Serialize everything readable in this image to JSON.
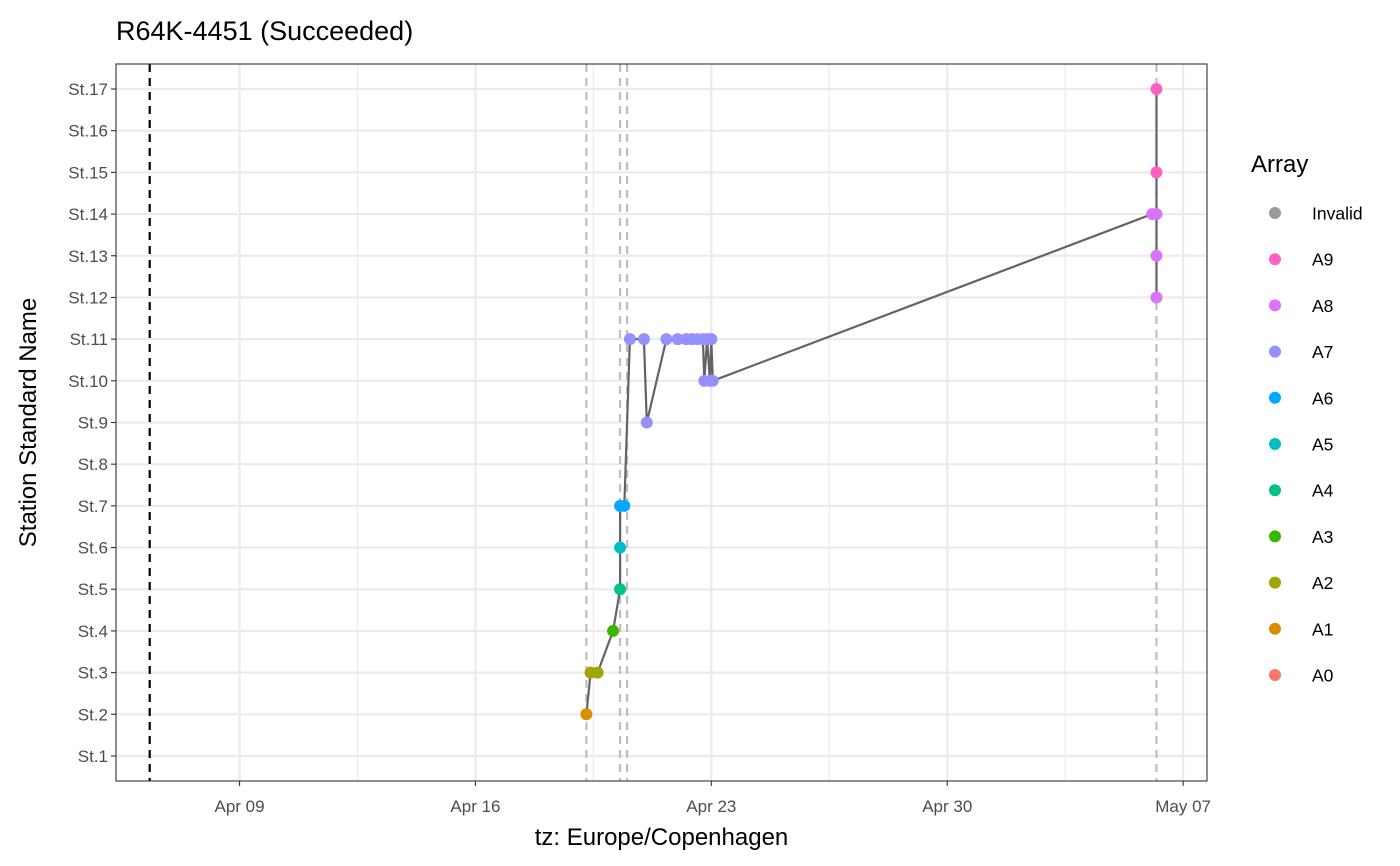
{
  "chart_data": {
    "type": "line",
    "title": "R64K-4451 (Succeeded)",
    "xlabel": "tz: Europe/Copenhagen",
    "ylabel": "Station Standard Name",
    "x_type": "date",
    "xlim": [
      "2024-04-05T08:00",
      "2024-05-07T17:00"
    ],
    "x_ticks": [
      {
        "date": "2024-04-09",
        "label": "Apr 09"
      },
      {
        "date": "2024-04-16",
        "label": "Apr 16"
      },
      {
        "date": "2024-04-23",
        "label": "Apr 23"
      },
      {
        "date": "2024-04-30",
        "label": "Apr 30"
      },
      {
        "date": "2024-05-07",
        "label": "May 07"
      }
    ],
    "x_minor_gridlines": [
      "2024-04-12T12:00",
      "2024-04-19T12:00",
      "2024-04-26T12:00",
      "2024-05-03T12:00"
    ],
    "y_categories": [
      "St.1",
      "St.2",
      "St.3",
      "St.4",
      "St.5",
      "St.6",
      "St.7",
      "St.8",
      "St.9",
      "St.10",
      "St.11",
      "St.12",
      "St.13",
      "St.14",
      "St.15",
      "St.16",
      "St.17"
    ],
    "grid": true,
    "release_line": {
      "date": "2024-04-06T08:00",
      "style": "dashed",
      "color": "#000000"
    },
    "vertical_reference_lines": {
      "dates": [
        "2024-04-19T07:00",
        "2024-04-20T07:00",
        "2024-04-20T12:00",
        "2024-05-06T05:00"
      ],
      "style": "dashed",
      "color": "#bebebe"
    },
    "path_color": "#636363",
    "points": [
      {
        "x": "2024-04-19T07:00",
        "y": "St.2",
        "array": "A1"
      },
      {
        "x": "2024-04-19T10:00",
        "y": "St.3",
        "array": "A2"
      },
      {
        "x": "2024-04-19T15:00",
        "y": "St.3",
        "array": "A2"
      },
      {
        "x": "2024-04-20T02:00",
        "y": "St.4",
        "array": "A3"
      },
      {
        "x": "2024-04-20T07:00",
        "y": "St.5",
        "array": "A4"
      },
      {
        "x": "2024-04-20T07:00",
        "y": "St.6",
        "array": "A5"
      },
      {
        "x": "2024-04-20T07:00",
        "y": "St.7",
        "array": "A6"
      },
      {
        "x": "2024-04-20T10:00",
        "y": "St.7",
        "array": "A6"
      },
      {
        "x": "2024-04-20T14:00",
        "y": "St.11",
        "array": "A7"
      },
      {
        "x": "2024-04-21T00:00",
        "y": "St.11",
        "array": "A7"
      },
      {
        "x": "2024-04-21T02:00",
        "y": "St.9",
        "array": "A7"
      },
      {
        "x": "2024-04-21T16:00",
        "y": "St.11",
        "array": "A7"
      },
      {
        "x": "2024-04-22T00:00",
        "y": "St.11",
        "array": "A7"
      },
      {
        "x": "2024-04-22T06:00",
        "y": "St.11",
        "array": "A7"
      },
      {
        "x": "2024-04-22T10:00",
        "y": "St.11",
        "array": "A7"
      },
      {
        "x": "2024-04-22T14:00",
        "y": "St.11",
        "array": "A7"
      },
      {
        "x": "2024-04-22T18:00",
        "y": "St.11",
        "array": "A7"
      },
      {
        "x": "2024-04-22T19:00",
        "y": "St.10",
        "array": "A7"
      },
      {
        "x": "2024-04-22T21:00",
        "y": "St.11",
        "array": "A7"
      },
      {
        "x": "2024-04-22T23:00",
        "y": "St.10",
        "array": "A7"
      },
      {
        "x": "2024-04-23T00:00",
        "y": "St.11",
        "array": "A7"
      },
      {
        "x": "2024-04-23T01:00",
        "y": "St.10",
        "array": "A7"
      },
      {
        "x": "2024-05-06T02:00",
        "y": "St.14",
        "array": "A8"
      },
      {
        "x": "2024-05-06T05:00",
        "y": "St.14",
        "array": "A8"
      },
      {
        "x": "2024-05-06T05:00",
        "y": "St.15",
        "array": "A9"
      },
      {
        "x": "2024-05-06T05:00",
        "y": "St.13",
        "array": "A8"
      },
      {
        "x": "2024-05-06T05:00",
        "y": "St.12",
        "array": "A8"
      },
      {
        "x": "2024-05-06T05:00",
        "y": "St.17",
        "array": "A9"
      }
    ],
    "legend": {
      "title": "Array",
      "placement": "right",
      "entries": [
        {
          "label": "Invalid",
          "color": "#999999"
        },
        {
          "label": "A9",
          "color": "#FF61C3"
        },
        {
          "label": "A8",
          "color": "#DB72FB"
        },
        {
          "label": "A7",
          "color": "#9590FF"
        },
        {
          "label": "A6",
          "color": "#00A9FF"
        },
        {
          "label": "A5",
          "color": "#00BFC4"
        },
        {
          "label": "A4",
          "color": "#00C08B"
        },
        {
          "label": "A3",
          "color": "#39B600"
        },
        {
          "label": "A2",
          "color": "#A3A500"
        },
        {
          "label": "A1",
          "color": "#D89000"
        },
        {
          "label": "A0",
          "color": "#F8766D"
        }
      ]
    }
  }
}
